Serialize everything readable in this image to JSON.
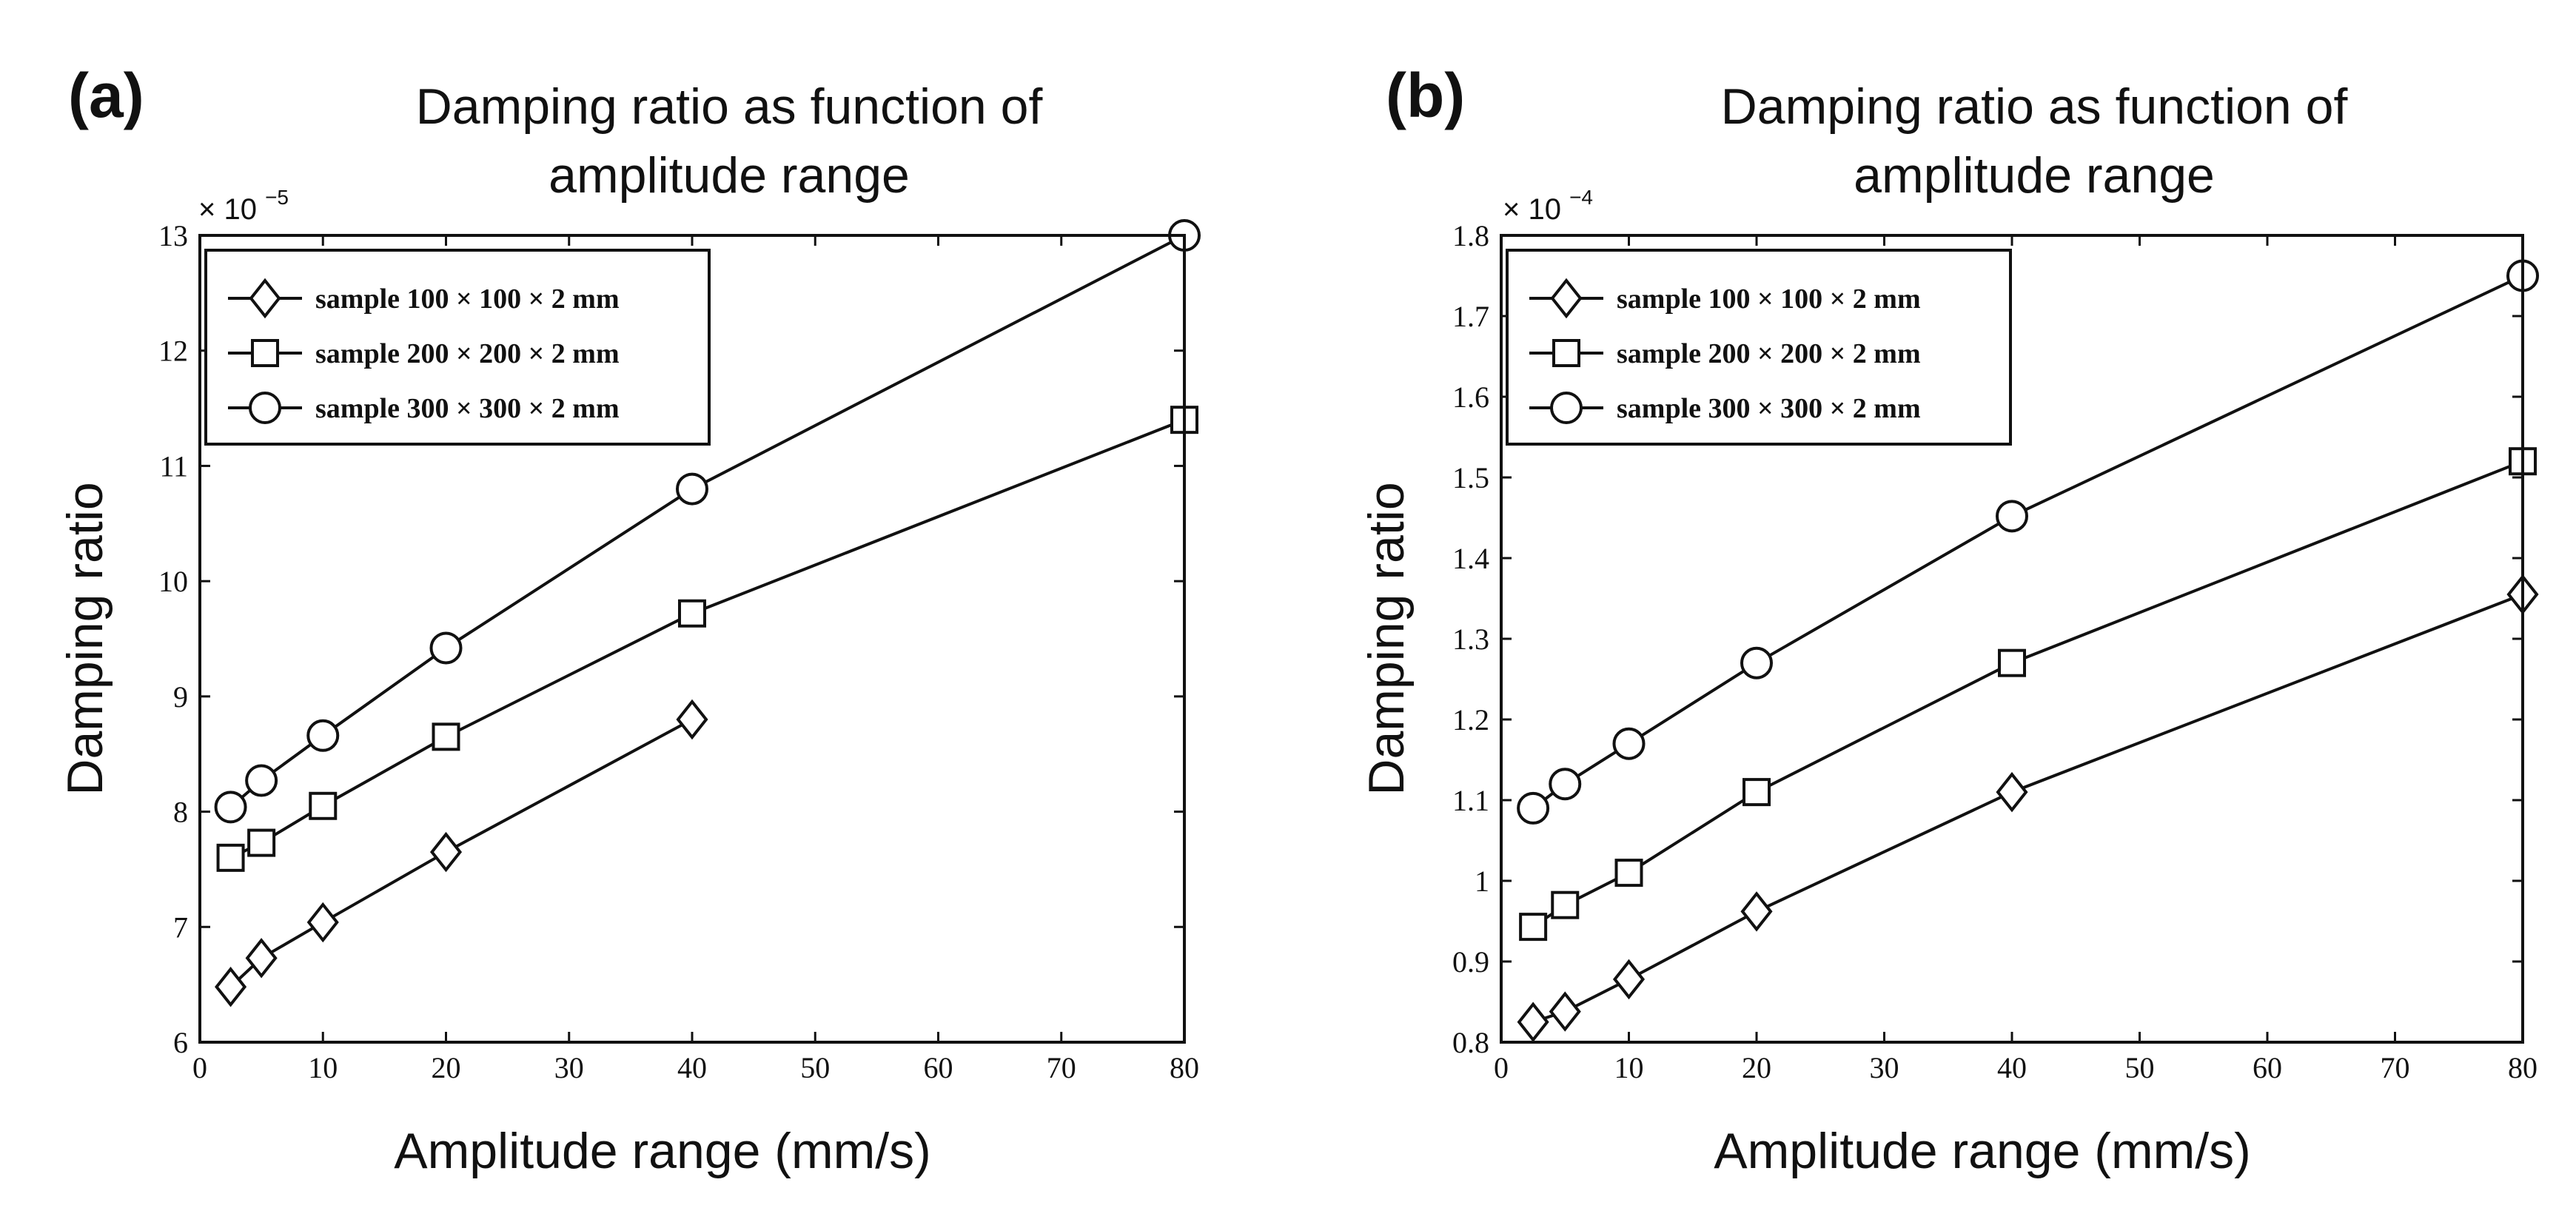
{
  "chart_data": [
    {
      "type": "line",
      "panel_label": "(a)",
      "title_lines": [
        "Damping ratio as function of",
        "amplitude range"
      ],
      "xlabel": "Amplitude range (mm/s)",
      "ylabel": "Damping ratio",
      "y_multiplier": "× 10",
      "y_exponent": "−5",
      "xlim": [
        0,
        80
      ],
      "ylim": [
        6,
        13
      ],
      "xticks": [
        0,
        10,
        20,
        30,
        40,
        50,
        60,
        70,
        80
      ],
      "xtick_labels": [
        "0",
        "10",
        "20",
        "30",
        "40",
        "50",
        "60",
        "70",
        "80"
      ],
      "yticks": [
        6,
        7,
        8,
        9,
        10,
        11,
        12,
        13
      ],
      "ytick_labels": [
        "6",
        "7",
        "8",
        "9",
        "10",
        "11",
        "12",
        "13"
      ],
      "legend_position": "top-left",
      "series": [
        {
          "name": "sample 100 × 100  × 2 mm",
          "marker": "diamond",
          "x": [
            2.5,
            5,
            10,
            20,
            40
          ],
          "y": [
            6.48,
            6.73,
            7.04,
            7.65,
            8.8
          ]
        },
        {
          "name": "sample 200 × 200  × 2 mm",
          "marker": "square",
          "x": [
            2.5,
            5,
            10,
            20,
            40,
            80
          ],
          "y": [
            7.6,
            7.73,
            8.05,
            8.65,
            9.72,
            11.4
          ]
        },
        {
          "name": "sample 300 × 300  × 2 mm",
          "marker": "circle",
          "x": [
            2.5,
            5,
            10,
            20,
            40,
            80
          ],
          "y": [
            8.04,
            8.27,
            8.66,
            9.42,
            10.8,
            13.0
          ]
        }
      ]
    },
    {
      "type": "line",
      "panel_label": "(b)",
      "title_lines": [
        "Damping ratio as function of",
        "amplitude range"
      ],
      "xlabel": "Amplitude range (mm/s)",
      "ylabel": "Damping ratio",
      "y_multiplier": "× 10",
      "y_exponent": "−4",
      "xlim": [
        0,
        80
      ],
      "ylim": [
        0.8,
        1.8
      ],
      "xticks": [
        0,
        10,
        20,
        30,
        40,
        50,
        60,
        70,
        80
      ],
      "xtick_labels": [
        "0",
        "10",
        "20",
        "30",
        "40",
        "50",
        "60",
        "70",
        "80"
      ],
      "yticks": [
        0.8,
        0.9,
        1.0,
        1.1,
        1.2,
        1.3,
        1.4,
        1.5,
        1.6,
        1.7,
        1.8
      ],
      "ytick_labels": [
        "0.8",
        "0.9",
        "1",
        "1.1",
        "1.2",
        "1.3",
        "1.4",
        "1.5",
        "1.6",
        "1.7",
        "1.8"
      ],
      "legend_position": "top-left",
      "series": [
        {
          "name": "sample 100 × 100  × 2 mm",
          "marker": "diamond",
          "x": [
            2.5,
            5,
            10,
            20,
            40,
            80
          ],
          "y": [
            0.825,
            0.838,
            0.878,
            0.962,
            1.11,
            1.355
          ]
        },
        {
          "name": "sample 200 × 200  × 2 mm",
          "marker": "square",
          "x": [
            2.5,
            5,
            10,
            20,
            40,
            80
          ],
          "y": [
            0.943,
            0.97,
            1.01,
            1.11,
            1.27,
            1.52
          ]
        },
        {
          "name": "sample 300 × 300  × 2 mm",
          "marker": "circle",
          "x": [
            2.5,
            5,
            10,
            20,
            40,
            80
          ],
          "y": [
            1.09,
            1.12,
            1.17,
            1.27,
            1.452,
            1.75
          ]
        }
      ]
    }
  ]
}
